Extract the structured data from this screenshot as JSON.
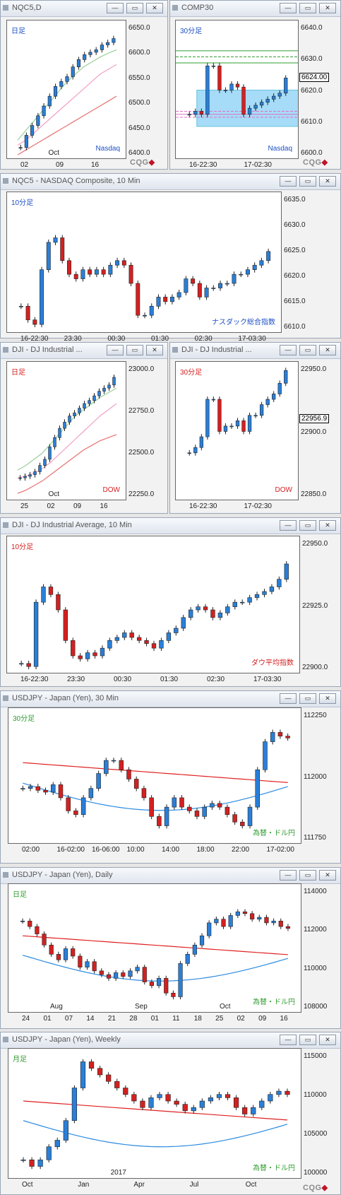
{
  "colors": {
    "blue": "#1d4fc4",
    "green": "#2f9b2f",
    "red": "#d42020",
    "teal": "#009ccc",
    "bg": "#ffffff"
  },
  "icons": {
    "minimize": "minimize-icon",
    "maximize": "maximize-icon",
    "close": "close-icon"
  },
  "panels": [
    {
      "id": "nq-daily",
      "title": "NQC5,D",
      "timeframe": "日足",
      "tf_color": "#1d4fc4",
      "name": "Nasdaq",
      "name_color": "#1d4fc4",
      "yticks": [
        "6650.0",
        "6600.0",
        "6550.0",
        "6500.0",
        "6450.0",
        "6400.0"
      ],
      "xticks": [
        "02",
        "09",
        "16"
      ],
      "xmonth": "Oct",
      "cqg": true
    },
    {
      "id": "comp-30",
      "title": "COMP30",
      "timeframe": "30分足",
      "tf_color": "#1d4fc4",
      "name": "Nasdaq",
      "name_color": "#1d4fc4",
      "yticks": [
        "6640.0",
        "6630.0",
        "6620.0",
        "6610.0",
        "6600.0"
      ],
      "last": "6624.00",
      "xticks": [
        "16-22:30",
        "17-02:30"
      ],
      "cqg": true
    },
    {
      "id": "nq-10",
      "title": "NQC5 - NASDAQ Composite, 10 Min",
      "timeframe": "10分足",
      "tf_color": "#1d4fc4",
      "name": "ナスダック総合指数",
      "name_color": "#1d4fc4",
      "yticks": [
        "6635.0",
        "6630.0",
        "6625.0",
        "6620.0",
        "6615.0",
        "6610.0"
      ],
      "xticks": [
        "16-22:30",
        "23:30",
        "00:30",
        "01:30",
        "02:30",
        "17-03:30"
      ],
      "cqg": false
    },
    {
      "id": "dji-daily",
      "title": "DJI - DJ Industrial ...",
      "timeframe": "日足",
      "tf_color": "#d42020",
      "name": "DOW",
      "name_color": "#d42020",
      "yticks": [
        "23000.0",
        "22750.0",
        "22500.0",
        "22250.0"
      ],
      "xticks": [
        "25",
        "02",
        "09",
        "16"
      ],
      "xmonth": "Oct",
      "cqg": false
    },
    {
      "id": "dji-30",
      "title": "DJI - DJ Industrial ...",
      "timeframe": "30分足",
      "tf_color": "#d42020",
      "name": "DOW",
      "name_color": "#d42020",
      "yticks": [
        "22950.0",
        "22900.0",
        "22850.0"
      ],
      "last": "22956.9",
      "xticks": [
        "16-22:30",
        "17-02:30"
      ],
      "cqg": false
    },
    {
      "id": "dji-10",
      "title": "DJI - DJ Industrial Average, 10 Min",
      "timeframe": "10分足",
      "tf_color": "#d42020",
      "name": "ダウ平均指数",
      "name_color": "#d42020",
      "yticks": [
        "22950.0",
        "22925.0",
        "22900.0"
      ],
      "xticks": [
        "16-22:30",
        "23:30",
        "00:30",
        "01:30",
        "02:30",
        "17-03:30"
      ],
      "cqg": false
    },
    {
      "id": "usdjpy-30",
      "title": "USDJPY - Japan (Yen), 30 Min",
      "timeframe": "30分足",
      "tf_color": "#2f9b2f",
      "name": "為替・ドル円",
      "name_color": "#2f9b2f",
      "yticks": [
        "112250",
        "112000",
        "111750"
      ],
      "xticks": [
        "02:00",
        "16-02:00",
        "16-06:00",
        "10:00",
        "14:00",
        "18:00",
        "22:00",
        "17-02:00"
      ],
      "cqg": false
    },
    {
      "id": "usdjpy-daily",
      "title": "USDJPY - Japan (Yen), Daily",
      "timeframe": "日足",
      "tf_color": "#2f9b2f",
      "name": "為替・ドル円",
      "name_color": "#2f9b2f",
      "yticks": [
        "114000",
        "112000",
        "110000",
        "108000"
      ],
      "xticks": [
        "24",
        "01",
        "07",
        "14",
        "21",
        "28",
        "01",
        "11",
        "18",
        "25",
        "02",
        "09",
        "16"
      ],
      "xmonths": [
        "Aug",
        "Sep",
        "Oct"
      ],
      "cqg": false
    },
    {
      "id": "usdjpy-weekly",
      "title": "USDJPY - Japan (Yen), Weekly",
      "timeframe": "月足",
      "tf_color": "#2f9b2f",
      "name": "為替・ドル円",
      "name_color": "#2f9b2f",
      "yticks": [
        "115000",
        "110000",
        "105000",
        "100000"
      ],
      "xticks": [
        "Oct",
        "Jan",
        "Apr",
        "Jul",
        "Oct"
      ],
      "xyear": "2017",
      "cqg": true
    }
  ],
  "chart_data": [
    {
      "type": "candlestick",
      "panel": "nq-daily",
      "ylim": [
        6380,
        6665
      ],
      "close": [
        6405,
        6430,
        6450,
        6470,
        6490,
        6510,
        6530,
        6540,
        6550,
        6570,
        6585,
        6595,
        6600,
        6605,
        6615,
        6620,
        6628
      ],
      "ma": [
        [
          6420,
          6440,
          6460,
          6480,
          6500,
          6520,
          6540,
          6555,
          6570,
          6580,
          6590,
          6598,
          6605
        ],
        [
          6410,
          6420,
          6435,
          6450,
          6465,
          6480,
          6495,
          6510,
          6525,
          6540,
          6555,
          6565,
          6575
        ],
        [
          6390,
          6400,
          6410,
          6420,
          6430,
          6440,
          6450,
          6460,
          6470,
          6480,
          6490,
          6500,
          6510
        ]
      ]
    },
    {
      "type": "candlestick",
      "panel": "comp-30",
      "ylim": [
        6597,
        6643
      ],
      "close": [
        6612,
        6613,
        6612,
        6628,
        6628,
        6620,
        6620,
        6622,
        6621,
        6612,
        6614,
        6615,
        6616,
        6617,
        6618,
        6619,
        6624
      ],
      "levels": [
        6633,
        6631,
        6629,
        6613,
        6612,
        6611
      ]
    },
    {
      "type": "candlestick",
      "panel": "nq-10",
      "ylim": [
        6606,
        6637
      ],
      "close": [
        6612,
        6609,
        6608,
        6620,
        6626,
        6627,
        6622,
        6619,
        6618,
        6620,
        6619,
        6620,
        6619,
        6621,
        6622,
        6621,
        6617,
        6610,
        6610,
        6612,
        6614,
        6613,
        6614,
        6615,
        6618,
        6617,
        6614,
        6616,
        6616,
        6617,
        6617,
        6619,
        6619,
        6620,
        6621,
        6622,
        6624
      ]
    },
    {
      "type": "candlestick",
      "panel": "dji-daily",
      "ylim": [
        22150,
        23050
      ],
      "close": [
        22300,
        22310,
        22320,
        22340,
        22380,
        22420,
        22500,
        22560,
        22620,
        22660,
        22700,
        22720,
        22750,
        22780,
        22800,
        22830,
        22860,
        22880,
        22900,
        22950
      ],
      "ma": [
        [
          22350,
          22380,
          22420,
          22460,
          22520,
          22580,
          22640,
          22700,
          22740,
          22780,
          22820,
          22850,
          22880
        ],
        [
          22300,
          22310,
          22330,
          22360,
          22400,
          22450,
          22500,
          22550,
          22600,
          22650,
          22700,
          22740,
          22780
        ],
        [
          22200,
          22220,
          22250,
          22280,
          22320,
          22360,
          22400,
          22440,
          22480,
          22510,
          22540,
          22560,
          22580
        ]
      ]
    },
    {
      "type": "candlestick",
      "panel": "dji-30",
      "ylim": [
        22835,
        22965
      ],
      "close": [
        22880,
        22885,
        22895,
        22930,
        22930,
        22900,
        22905,
        22905,
        22910,
        22900,
        22915,
        22915,
        22925,
        22930,
        22935,
        22945,
        22956.9
      ]
    },
    {
      "type": "candlestick",
      "panel": "dji-10",
      "ylim": [
        22888,
        22978
      ],
      "close": [
        22895,
        22893,
        22935,
        22945,
        22940,
        22930,
        22910,
        22900,
        22898,
        22902,
        22900,
        22905,
        22910,
        22912,
        22915,
        22912,
        22910,
        22908,
        22905,
        22910,
        22915,
        22918,
        22925,
        22930,
        22932,
        22930,
        22925,
        22928,
        22932,
        22935,
        22935,
        22938,
        22940,
        22942,
        22945,
        22950,
        22960
      ]
    },
    {
      "type": "candlestick",
      "panel": "usdjpy-30",
      "ylim": [
        111600,
        112330
      ],
      "close": [
        111900,
        111910,
        111890,
        111880,
        111920,
        111850,
        111780,
        111760,
        111850,
        111900,
        111980,
        112050,
        112050,
        112000,
        111950,
        111900,
        111850,
        111750,
        111700,
        111800,
        111850,
        111800,
        111780,
        111750,
        111800,
        111820,
        111800,
        111760,
        111720,
        111700,
        111800,
        112000,
        112150,
        112200,
        112180,
        112170
      ]
    },
    {
      "type": "candlestick",
      "panel": "usdjpy-daily",
      "ylim": [
        107300,
        114300
      ],
      "close": [
        112300,
        112000,
        111600,
        111000,
        110500,
        110200,
        110800,
        110400,
        109800,
        110100,
        109600,
        109400,
        109200,
        109500,
        109300,
        109600,
        109800,
        109000,
        108800,
        109200,
        108400,
        108200,
        110000,
        110500,
        111000,
        111500,
        112200,
        112400,
        112000,
        112600,
        112800,
        112700,
        112400,
        112500,
        112200,
        112300,
        112000,
        111900
      ]
    },
    {
      "type": "candlestick",
      "panel": "usdjpy-weekly",
      "ylim": [
        99000,
        119000
      ],
      "close": [
        102000,
        101000,
        102000,
        104000,
        105000,
        108000,
        113000,
        117000,
        116000,
        115000,
        114000,
        113000,
        112000,
        111000,
        110000,
        111500,
        112000,
        111000,
        110500,
        109500,
        110000,
        111000,
        111500,
        112000,
        111500,
        110000,
        109000,
        110000,
        111000,
        112000,
        112500,
        112000
      ]
    }
  ]
}
